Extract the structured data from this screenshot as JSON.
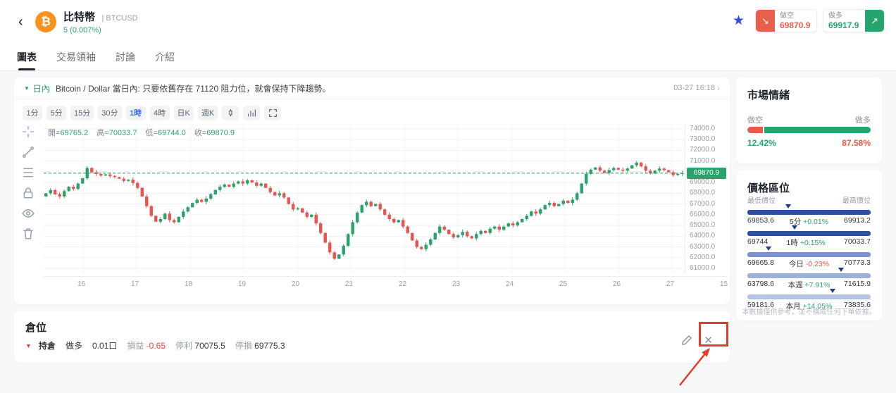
{
  "header": {
    "symbol_name": "比特幣",
    "divider": "|",
    "symbol_code": "BTCUSD",
    "change_text": "5 (0.007%)",
    "coin_glyph": "₿",
    "sell": {
      "label": "做空",
      "price": "69870.9"
    },
    "buy": {
      "label": "做多",
      "price": "69917.9"
    }
  },
  "icons": {
    "back": "‹",
    "star": "★",
    "sell_arrow": "↘",
    "buy_arrow": "↗",
    "signal_triangle": "▼",
    "position_triangle": "▼",
    "close": "✕",
    "time_chevron": "›"
  },
  "tabs": [
    {
      "label": "圖表",
      "active": true
    },
    {
      "label": "交易領袖",
      "active": false
    },
    {
      "label": "討論",
      "active": false
    },
    {
      "label": "介紹",
      "active": false
    }
  ],
  "signal": {
    "tag": "日內",
    "text": "Bitcoin / Dollar 當日內: 只要依舊存在 71120 阻力位，就會保持下降趨勢。",
    "time": "03-27 16:18"
  },
  "chart_toolbar": {
    "timeframes": [
      "1分",
      "5分",
      "15分",
      "30分",
      "1時",
      "4時",
      "日K",
      "週K"
    ],
    "active_index": 4
  },
  "legend": {
    "open_label": "開=",
    "open": "69765.2",
    "high_label": "高=",
    "high": "70033.7",
    "low_label": "低=",
    "low": "69744.0",
    "close_label": "收=",
    "close": "69870.9"
  },
  "chart_data": {
    "type": "candlestick",
    "title": "Bitcoin / Dollar 1時",
    "x_labels": [
      "16",
      "17",
      "18",
      "19",
      "20",
      "21",
      "22",
      "23",
      "24",
      "25",
      "26",
      "27",
      "15"
    ],
    "y_ticks": [
      74000,
      73000,
      72000,
      71000,
      70000,
      69000,
      68000,
      67000,
      66000,
      65000,
      64000,
      63000,
      62000,
      61000
    ],
    "y_axis_hidden_tick": 70000,
    "y_range": [
      60550,
      74450
    ],
    "current_price": 69870.9,
    "up_color": "#2aa36b",
    "down_color": "#e8544e",
    "closes": [
      68000,
      68300,
      67900,
      67700,
      68200,
      68600,
      68400,
      68900,
      69400,
      70350,
      69950,
      69800,
      69650,
      69750,
      69600,
      69500,
      69350,
      69150,
      69250,
      68950,
      68500,
      67700,
      66800,
      65900,
      65350,
      65600,
      66100,
      65500,
      65300,
      65800,
      66300,
      66700,
      67100,
      67400,
      67200,
      67500,
      67900,
      68300,
      68600,
      68800,
      68600,
      68900,
      69100,
      68900,
      69200,
      69000,
      68700,
      68900,
      68500,
      68100,
      67800,
      68000,
      67600,
      67000,
      66500,
      66600,
      66200,
      65800,
      66000,
      65200,
      64300,
      63400,
      62500,
      61900,
      62300,
      63100,
      64200,
      65300,
      66200,
      66900,
      67200,
      66800,
      67000,
      66500,
      66000,
      65600,
      65300,
      65500,
      64900,
      64300,
      63600,
      63000,
      62800,
      63200,
      63700,
      64300,
      64900,
      64600,
      64200,
      63900,
      64100,
      64400,
      64000,
      63800,
      64200,
      64500,
      64300,
      64700,
      64900,
      64600,
      64900,
      65200,
      65000,
      65300,
      65600,
      65900,
      66300,
      66100,
      66500,
      66900,
      67100,
      66800,
      67000,
      67300,
      67100,
      67400,
      68000,
      68900,
      69800,
      70200,
      70400,
      70100,
      69900,
      70150,
      70350,
      70200,
      70100,
      70300,
      70600,
      70850,
      70500,
      70100,
      69850,
      70100,
      70300,
      70150,
      69950,
      69700,
      69800,
      69870.9
    ]
  },
  "sentiment": {
    "title": "市場情緒",
    "left_label": "做空",
    "right_label": "做多",
    "left_pct": "12.42%",
    "right_pct": "87.58%",
    "left_value": 12.42,
    "right_value": 87.58,
    "short_color": "#e45b48",
    "long_color": "#25a56d"
  },
  "price_levels": {
    "title": "價格區位",
    "low_header": "最低價位",
    "high_header": "最高價位",
    "rows": [
      {
        "low": "69853.6",
        "period": "5分",
        "change": "+0.01%",
        "high": "69913.2",
        "marker_pct": 33,
        "bar_color": "#2d4f9f"
      },
      {
        "low": "69744",
        "period": "1時",
        "change": "+0.15%",
        "high": "70033.7",
        "marker_pct": 38,
        "bar_color": "#2d4f9f"
      },
      {
        "low": "69665.8",
        "period": "今日",
        "change": "-0.23%",
        "high": "70773.3",
        "marker_pct": 17,
        "bar_color": "#7d92c8"
      },
      {
        "low": "63798.6",
        "period": "本週",
        "change": "+7.91%",
        "high": "71615.9",
        "marker_pct": 76,
        "bar_color": "#9fb0d8"
      },
      {
        "low": "59181.6",
        "period": "本月",
        "change": "+14.05%",
        "high": "73835.6",
        "marker_pct": 69,
        "bar_color": "#b7c3e4"
      }
    ],
    "disclaimer": "本數據僅供參考，並不構成任何下單依據。"
  },
  "positions": {
    "title": "倉位",
    "row": {
      "type": "持倉",
      "direction": "做多",
      "volume": "0.01口",
      "pnl_label": "損益",
      "pnl": "-0.65",
      "tp_label": "停利",
      "tp": "70075.5",
      "sl_label": "停損",
      "sl": "69775.3"
    }
  }
}
